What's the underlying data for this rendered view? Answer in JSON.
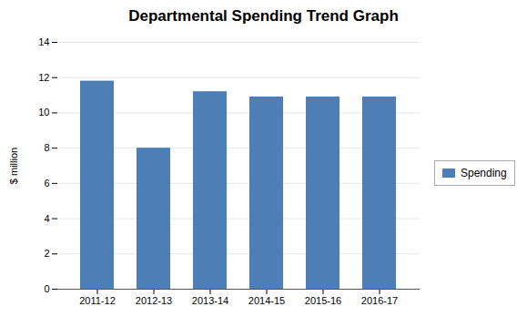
{
  "chart_data": {
    "type": "bar",
    "title": "Departmental Spending Trend Graph",
    "categories": [
      "2011-12",
      "2012-13",
      "2013-14",
      "2014-15",
      "2015-16",
      "2016-17"
    ],
    "values": [
      11.8,
      8.0,
      11.2,
      10.9,
      10.9,
      10.9
    ],
    "color": "#4d7eb5",
    "series_name": "Spending",
    "ylabel": "$ million",
    "ylim": [
      0,
      14
    ],
    "yticks": [
      0,
      2,
      4,
      6,
      8,
      10,
      12,
      14
    ],
    "grid": true,
    "legend": "right"
  }
}
